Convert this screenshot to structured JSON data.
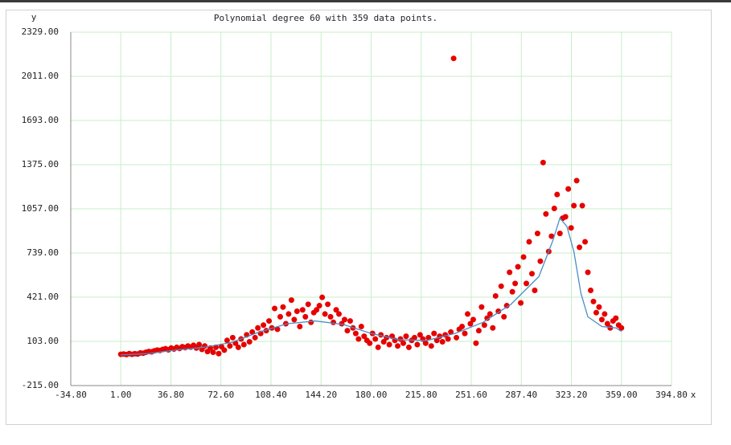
{
  "chart_data": {
    "type": "scatter",
    "title": "Polynomial degree 60 with 359 data points.",
    "xlabel": "x",
    "ylabel": "y",
    "xlim": [
      -34.8,
      394.8
    ],
    "xticks": [
      {
        "value": -34.8,
        "label": "-34.80"
      },
      {
        "value": 1,
        "label": "1.00"
      },
      {
        "value": 36.8,
        "label": "36.80"
      },
      {
        "value": 72.6,
        "label": "72.60"
      },
      {
        "value": 108.4,
        "label": "108.40"
      },
      {
        "value": 144.2,
        "label": "144.20"
      },
      {
        "value": 180,
        "label": "180.00"
      },
      {
        "value": 215.8,
        "label": "215.80"
      },
      {
        "value": 251.6,
        "label": "251.60"
      },
      {
        "value": 287.4,
        "label": "287.40"
      },
      {
        "value": 323.2,
        "label": "323.20"
      },
      {
        "value": 359,
        "label": "359.00"
      },
      {
        "value": 394.8,
        "label": "394.80"
      }
    ],
    "ylim": [
      -215,
      2329
    ],
    "yticks": [
      {
        "value": -215,
        "label": "-215.00"
      },
      {
        "value": 103,
        "label": "103.00"
      },
      {
        "value": 421,
        "label": "421.00"
      },
      {
        "value": 739,
        "label": "739.00"
      },
      {
        "value": 1057,
        "label": "1057.00"
      },
      {
        "value": 1375,
        "label": "1375.00"
      },
      {
        "value": 1693,
        "label": "1693.00"
      },
      {
        "value": 2011,
        "label": "2011.00"
      },
      {
        "value": 2329,
        "label": "2329.00"
      }
    ],
    "grid": true,
    "grid_color": "#c8eec8",
    "series": [
      {
        "type": "scatter",
        "color": "#e60000",
        "x": [
          1,
          3,
          5,
          7,
          9,
          11,
          13,
          15,
          17,
          19,
          21,
          23,
          25,
          27,
          29,
          31,
          33,
          35,
          37,
          39,
          41,
          43,
          45,
          47,
          49,
          51,
          53,
          55,
          57,
          59,
          61,
          63,
          65,
          67,
          69,
          71,
          73,
          75,
          77,
          79,
          81,
          83,
          85,
          87,
          89,
          91,
          93,
          95,
          97,
          99,
          101,
          103,
          105,
          107,
          109,
          111,
          113,
          115,
          117,
          119,
          121,
          123,
          125,
          127,
          129,
          131,
          133,
          135,
          137,
          139,
          141,
          143,
          145,
          147,
          149,
          151,
          153,
          155,
          157,
          159,
          161,
          163,
          165,
          167,
          169,
          171,
          173,
          175,
          177,
          179,
          181,
          183,
          185,
          187,
          189,
          191,
          193,
          195,
          197,
          199,
          201,
          203,
          205,
          207,
          209,
          211,
          213,
          215,
          217,
          219,
          221,
          223,
          225,
          227,
          229,
          231,
          233,
          235,
          237,
          239,
          241,
          243,
          245,
          247,
          249,
          251,
          253,
          255,
          257,
          259,
          261,
          263,
          265,
          267,
          269,
          271,
          273,
          275,
          277,
          279,
          281,
          283,
          285,
          287,
          289,
          291,
          293,
          295,
          297,
          299,
          301,
          303,
          305,
          307,
          309,
          311,
          313,
          315,
          317,
          319,
          321,
          323,
          325,
          327,
          329,
          331,
          333,
          335,
          337,
          339,
          341,
          343,
          345,
          347,
          349,
          351,
          353,
          355,
          357,
          359
        ],
        "values": [
          10,
          12,
          8,
          15,
          10,
          14,
          12,
          20,
          18,
          25,
          30,
          28,
          35,
          40,
          38,
          45,
          50,
          42,
          55,
          48,
          60,
          52,
          65,
          58,
          70,
          62,
          75,
          55,
          80,
          45,
          70,
          30,
          55,
          25,
          60,
          15,
          65,
          40,
          110,
          70,
          130,
          90,
          60,
          120,
          80,
          150,
          100,
          170,
          130,
          200,
          160,
          220,
          180,
          250,
          200,
          340,
          190,
          280,
          350,
          230,
          300,
          400,
          260,
          320,
          210,
          330,
          280,
          370,
          240,
          310,
          330,
          360,
          420,
          300,
          370,
          280,
          240,
          330,
          300,
          230,
          260,
          180,
          250,
          200,
          160,
          120,
          210,
          140,
          110,
          90,
          160,
          120,
          60,
          150,
          100,
          130,
          80,
          140,
          110,
          70,
          120,
          90,
          140,
          60,
          110,
          130,
          80,
          150,
          120,
          90,
          130,
          70,
          160,
          110,
          140,
          100,
          150,
          120,
          170,
          2140,
          130,
          190,
          210,
          160,
          300,
          230,
          260,
          90,
          180,
          350,
          220,
          270,
          300,
          200,
          430,
          320,
          500,
          280,
          360,
          600,
          460,
          520,
          640,
          380,
          710,
          520,
          820,
          590,
          470,
          880,
          680,
          1390,
          1020,
          750,
          860,
          1060,
          1160,
          880,
          990,
          1000,
          1200,
          920,
          1080,
          1260,
          780,
          1080,
          820,
          600,
          470,
          390,
          310,
          350,
          260,
          300,
          230,
          200,
          250,
          270,
          220,
          200
        ]
      },
      {
        "type": "line",
        "color": "#4a8ec6",
        "x": [
          1,
          20,
          40,
          60,
          80,
          100,
          120,
          140,
          160,
          180,
          200,
          220,
          240,
          260,
          280,
          300,
          310,
          315,
          320,
          325,
          330,
          335,
          345,
          355,
          359
        ],
        "values": [
          5,
          15,
          40,
          60,
          95,
          170,
          230,
          250,
          225,
          160,
          115,
          110,
          160,
          240,
          370,
          570,
          830,
          990,
          930,
          750,
          450,
          280,
          210,
          200,
          175
        ]
      }
    ]
  }
}
